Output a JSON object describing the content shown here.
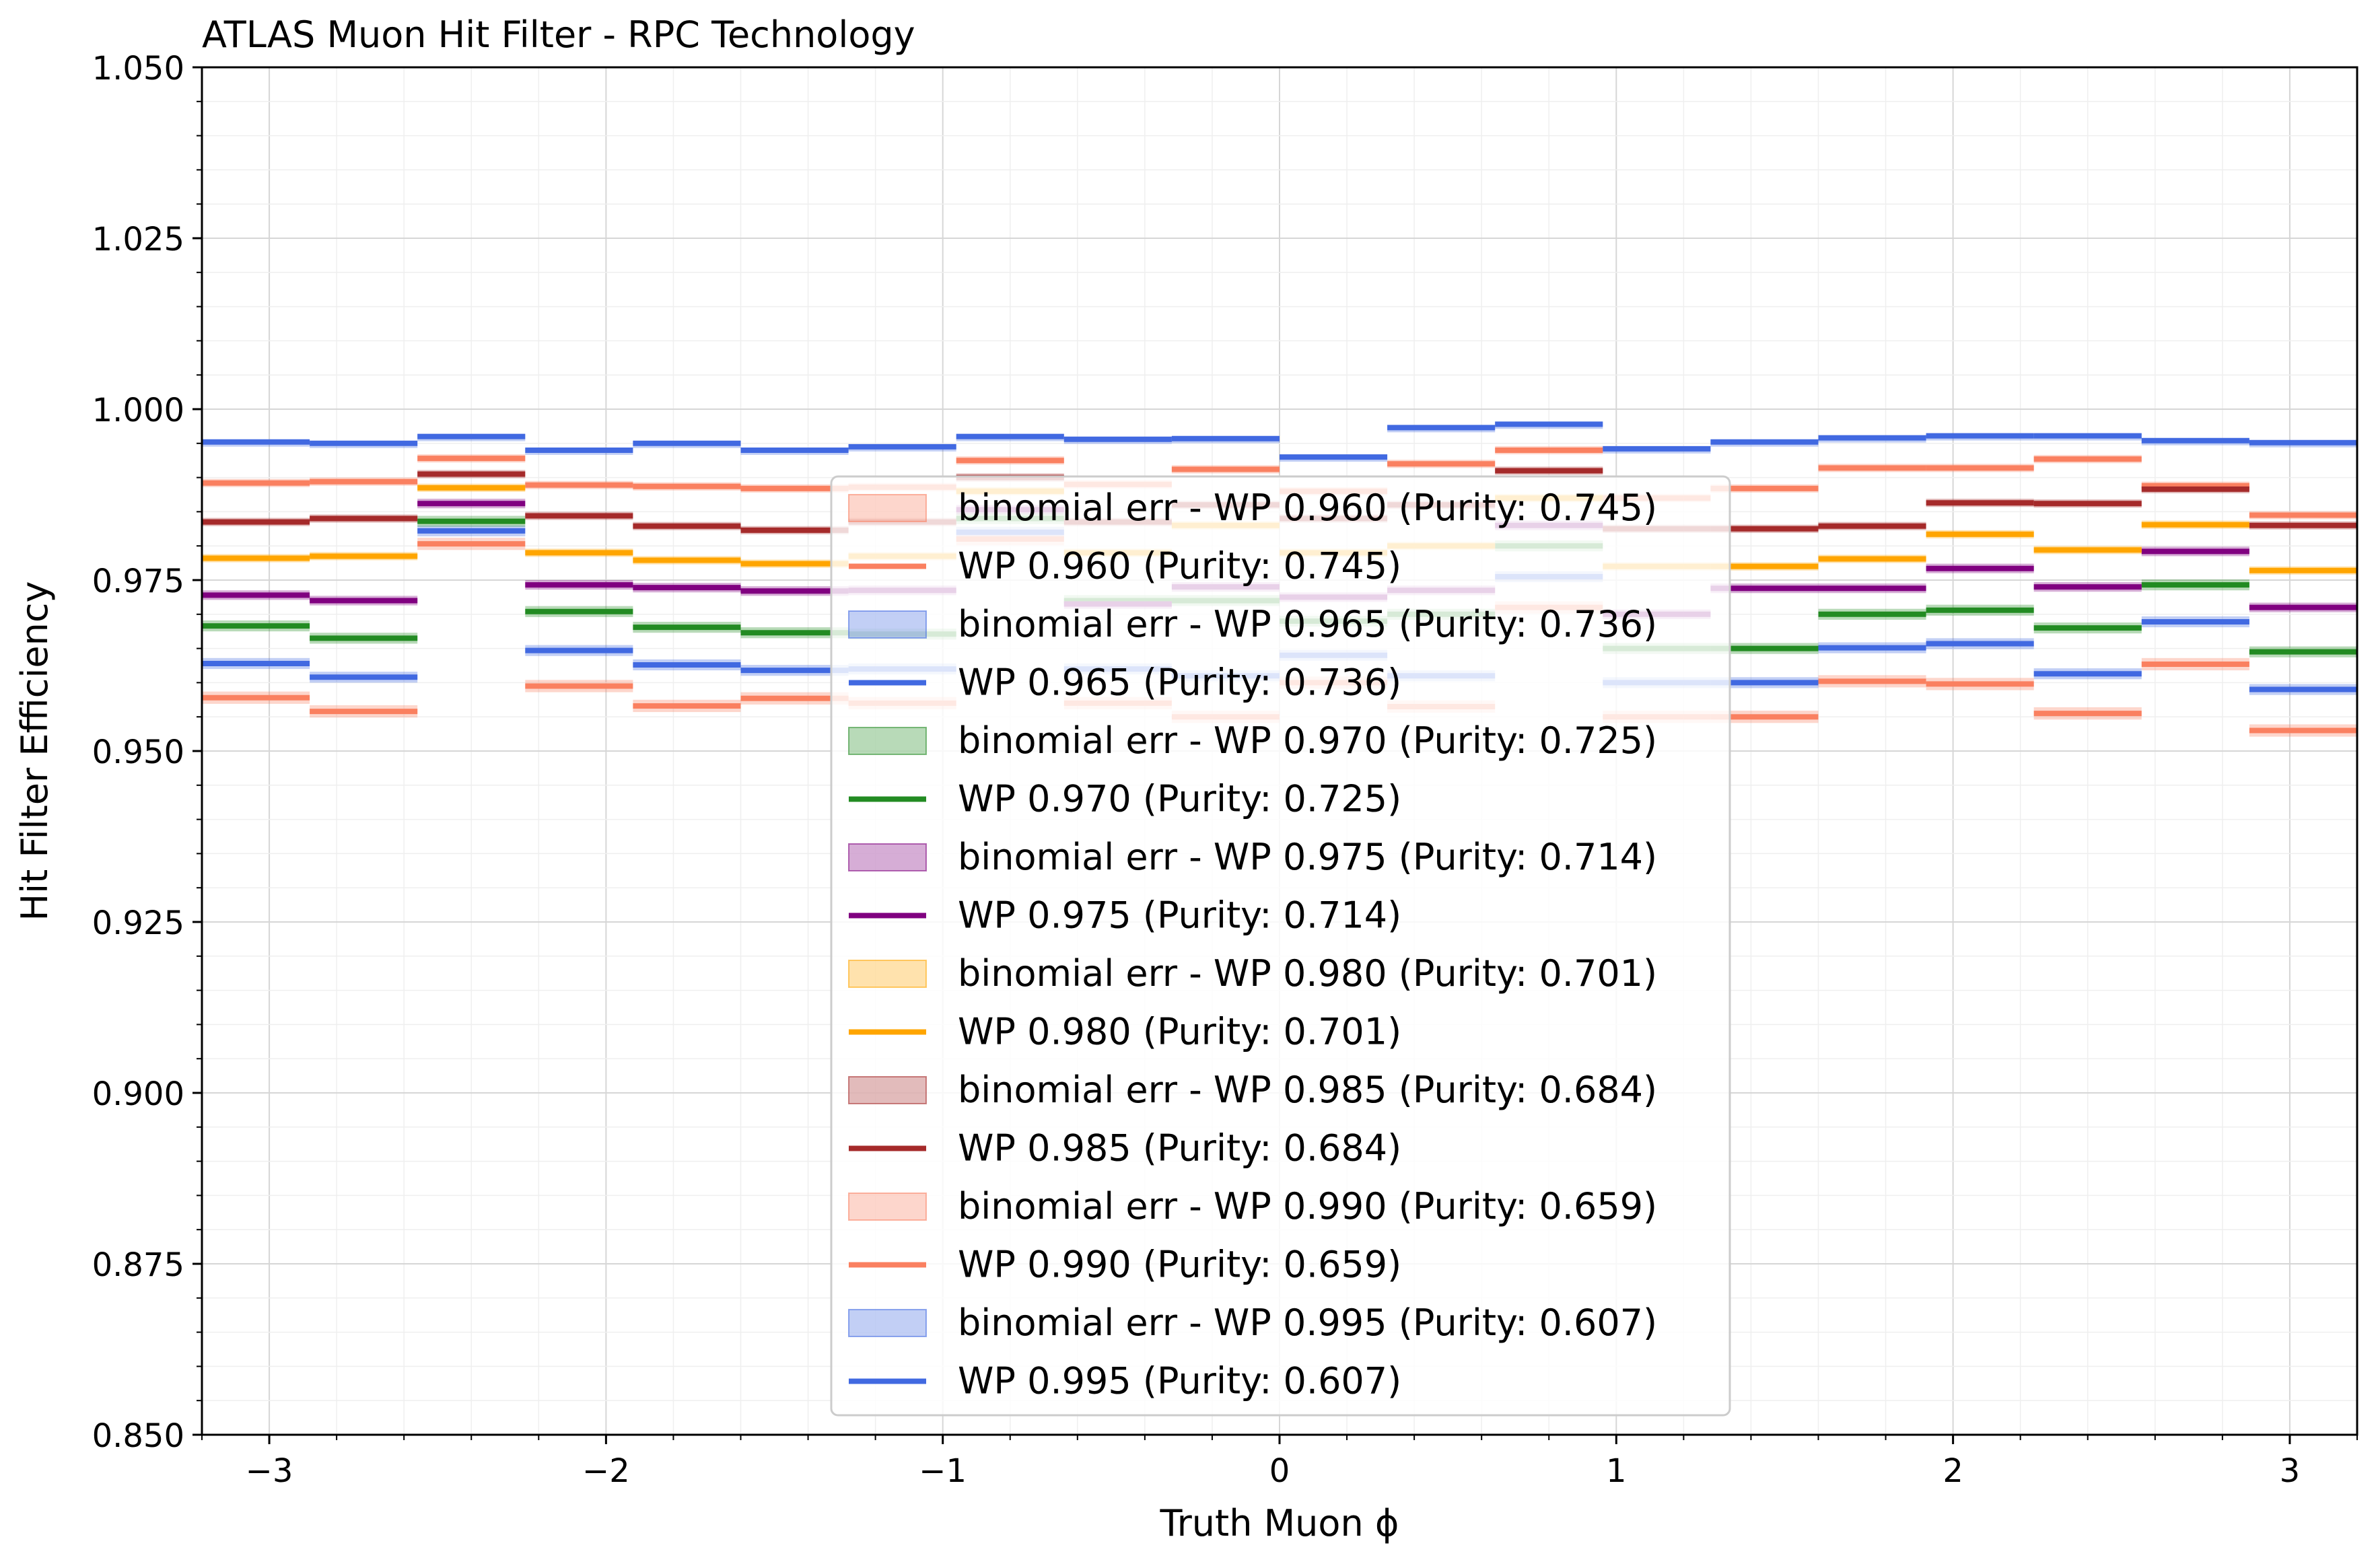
{
  "chart_data": {
    "type": "line",
    "step": true,
    "title": "ATLAS Muon Hit Filter - RPC Technology",
    "xlabel": "Truth Muon ϕ",
    "ylabel": "Hit Filter Efficiency",
    "xlim": [
      -3.2,
      3.2
    ],
    "ylim": [
      0.85,
      1.05
    ],
    "grid": true,
    "legend_position": "lower-center",
    "x_ticks": [
      -3,
      -2,
      -1,
      0,
      1,
      2,
      3
    ],
    "x_tick_labels": [
      "−3",
      "−2",
      "−1",
      "0",
      "1",
      "2",
      "3"
    ],
    "y_ticks": [
      0.85,
      0.875,
      0.9,
      0.925,
      0.95,
      0.975,
      1.0,
      1.025,
      1.05
    ],
    "y_tick_labels": [
      "0.850",
      "0.875",
      "0.900",
      "0.925",
      "0.950",
      "0.975",
      "1.000",
      "1.025",
      "1.050"
    ],
    "bin_edges": [
      -3.2,
      -2.88,
      -2.56,
      -2.24,
      -1.92,
      -1.6,
      -1.28,
      -0.96,
      -0.64,
      -0.32,
      0.0,
      0.32,
      0.64,
      0.96,
      1.28,
      1.6,
      1.92,
      2.24,
      2.56,
      2.88,
      3.2
    ],
    "series": [
      {
        "name": "WP 0.960 (Purity: 0.745)",
        "band_label": "binomial err - WP 0.960 (Purity: 0.745)",
        "color": "#FA8060",
        "values": [
          0.9892,
          0.9894,
          0.9928,
          0.9889,
          0.9887,
          0.9884,
          0.9886,
          0.9925,
          0.989,
          0.9912,
          0.988,
          0.992,
          0.994,
          0.987,
          0.9884,
          0.9914,
          0.9914,
          0.9927,
          0.9888,
          0.9845
        ],
        "err": 0.0006
      },
      {
        "name": "WP 0.965 (Purity: 0.736)",
        "band_label": "binomial err - WP 0.965 (Purity: 0.736)",
        "color": "#4169E1",
        "values": [
          0.9628,
          0.9608,
          0.9822,
          0.9647,
          0.9626,
          0.9618,
          0.962,
          0.982,
          0.962,
          0.961,
          0.964,
          0.961,
          0.9755,
          0.96,
          0.96,
          0.9651,
          0.9657,
          0.9613,
          0.9689,
          0.959
        ],
        "err": 0.0008
      },
      {
        "name": "WP 0.970 (Purity: 0.725)",
        "band_label": "binomial err - WP 0.970 (Purity: 0.725)",
        "color": "#228B22",
        "values": [
          0.9683,
          0.9665,
          0.9836,
          0.9704,
          0.9681,
          0.9673,
          0.9671,
          0.984,
          0.972,
          0.972,
          0.969,
          0.97,
          0.98,
          0.965,
          0.965,
          0.97,
          0.9706,
          0.968,
          0.9743,
          0.9645
        ],
        "err": 0.0008
      },
      {
        "name": "WP 0.975 (Purity: 0.714)",
        "band_label": "binomial err - WP 0.975 (Purity: 0.714)",
        "color": "#800080",
        "values": [
          0.9728,
          0.972,
          0.9862,
          0.9743,
          0.9739,
          0.9734,
          0.9735,
          0.9853,
          0.9715,
          0.974,
          0.9725,
          0.9735,
          0.983,
          0.97,
          0.9738,
          0.9738,
          0.9767,
          0.974,
          0.9792,
          0.971
        ],
        "err": 0.0007
      },
      {
        "name": "WP 0.980 (Purity: 0.701)",
        "band_label": "binomial err - WP 0.980 (Purity: 0.701)",
        "color": "#FFA500",
        "values": [
          0.9782,
          0.9785,
          0.9885,
          0.979,
          0.9779,
          0.9774,
          0.9785,
          0.988,
          0.979,
          0.983,
          0.979,
          0.98,
          0.987,
          0.977,
          0.977,
          0.9781,
          0.9817,
          0.9794,
          0.9831,
          0.9764
        ],
        "err": 0.0006
      },
      {
        "name": "WP 0.985 (Purity: 0.684)",
        "band_label": "binomial err - WP 0.985 (Purity: 0.684)",
        "color": "#A52A2A",
        "values": [
          0.9835,
          0.984,
          0.9905,
          0.9844,
          0.9829,
          0.9823,
          0.9835,
          0.99,
          0.9835,
          0.986,
          0.984,
          0.986,
          0.991,
          0.9825,
          0.9825,
          0.9829,
          0.9863,
          0.9862,
          0.9883,
          0.983
        ],
        "err": 0.0006
      },
      {
        "name": "WP 0.990 (Purity: 0.659)",
        "band_label": "binomial err - WP 0.990 (Purity: 0.659)",
        "color": "#FA8060",
        "values": [
          0.9578,
          0.9558,
          0.9803,
          0.9595,
          0.9566,
          0.9577,
          0.957,
          0.981,
          0.957,
          0.955,
          0.96,
          0.9565,
          0.971,
          0.955,
          0.955,
          0.9602,
          0.9598,
          0.9555,
          0.9627,
          0.953
        ],
        "err": 0.0009
      },
      {
        "name": "WP 0.995 (Purity: 0.607)",
        "band_label": "binomial err - WP 0.995 (Purity: 0.607)",
        "color": "#4169E1",
        "values": [
          0.9952,
          0.995,
          0.996,
          0.994,
          0.995,
          0.994,
          0.9945,
          0.996,
          0.9956,
          0.9957,
          0.993,
          0.9973,
          0.9978,
          0.9942,
          0.9952,
          0.9958,
          0.9961,
          0.9961,
          0.9954,
          0.9951
        ],
        "err": 0.0003
      }
    ]
  }
}
